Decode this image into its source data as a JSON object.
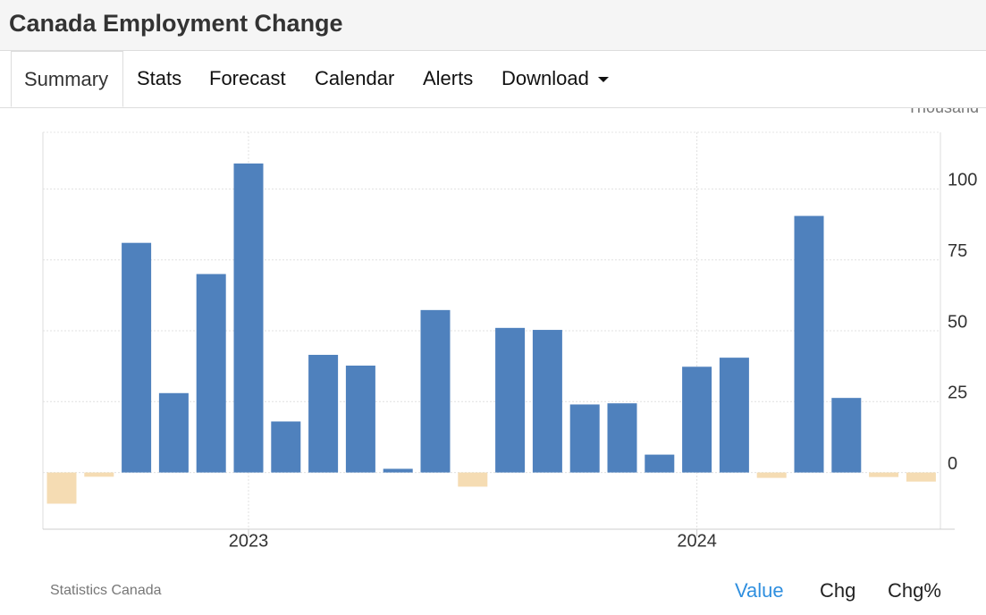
{
  "header": {
    "title": "Canada Employment Change"
  },
  "tabs": [
    "Summary",
    "Stats",
    "Forecast",
    "Calendar",
    "Alerts",
    "Download"
  ],
  "chart_data": {
    "type": "bar",
    "unit_label": "Thousand",
    "categories": [
      null,
      null,
      null,
      null,
      null,
      "2023",
      null,
      null,
      null,
      null,
      null,
      null,
      null,
      null,
      null,
      null,
      null,
      "2024",
      null,
      null,
      null,
      null,
      null,
      null
    ],
    "values": [
      -11,
      -1.5,
      81,
      28,
      70,
      109,
      18,
      41.5,
      37.7,
      1.3,
      57.3,
      -5,
      51,
      50.3,
      24,
      24.4,
      6.3,
      37.3,
      40.5,
      -1.9,
      90.5,
      26.3,
      -1.6,
      -3.2
    ],
    "color": "#4f81bd",
    "negative_color": "#f5dcb3",
    "ylim": [
      -20,
      120
    ],
    "yticks": [
      0,
      25,
      50,
      75,
      100
    ],
    "grid": true
  },
  "footer": {
    "source": "Statistics Canada",
    "buttons": [
      "Value",
      "Chg",
      "Chg%"
    ]
  }
}
